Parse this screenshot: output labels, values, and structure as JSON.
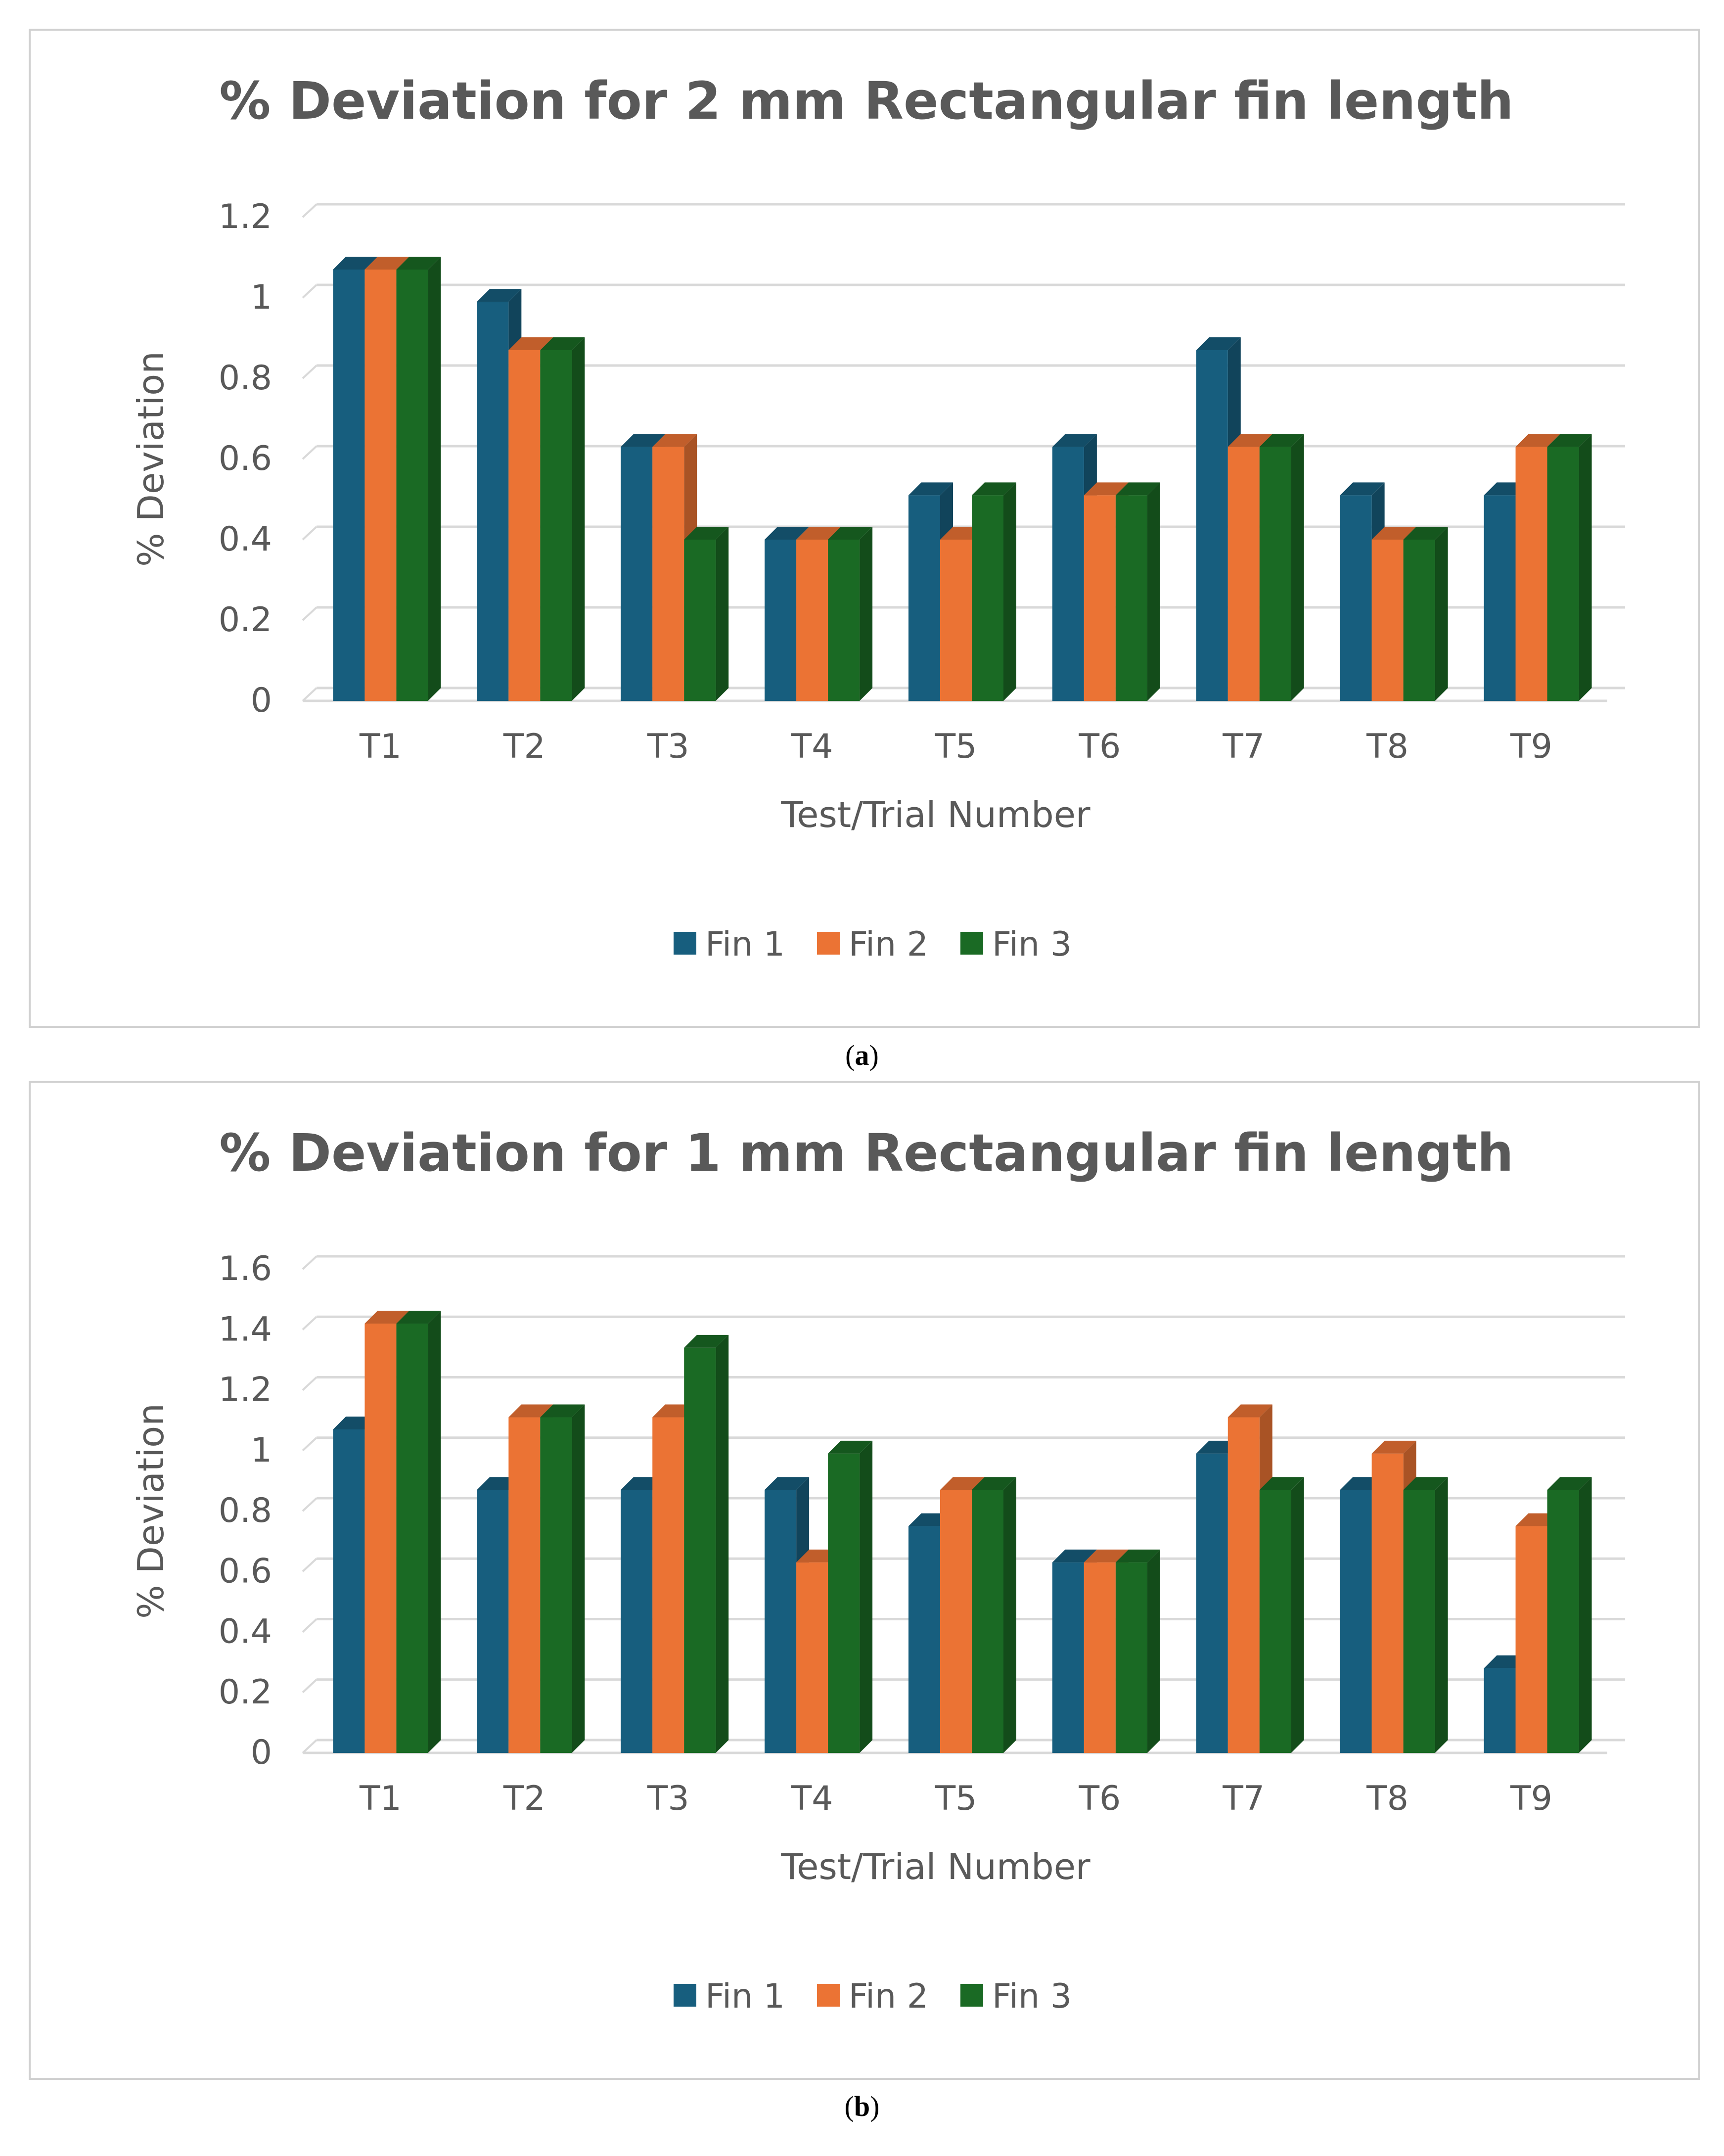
{
  "colors": {
    "fin1": "#175E7E",
    "fin2": "#EB7334",
    "fin3": "#1A6A24",
    "grid": "#d9d9d9",
    "text": "#595959"
  },
  "chart_data": [
    {
      "id": "a",
      "type": "bar",
      "title": "% Deviation for 2 mm Rectangular fin length",
      "xlabel": "Test/Trial Number",
      "ylabel": "% Deviation",
      "ylim": [
        0,
        1.2
      ],
      "yticks": [
        "0",
        "0.2",
        "0.4",
        "0.6",
        "0.8",
        "1",
        "1.2"
      ],
      "grid": true,
      "legend": "bottom",
      "categories": [
        "T1",
        "T2",
        "T3",
        "T4",
        "T5",
        "T6",
        "T7",
        "T8",
        "T9"
      ],
      "series": [
        {
          "name": "Fin 1",
          "values": [
            1.07,
            0.99,
            0.63,
            0.4,
            0.51,
            0.63,
            0.87,
            0.51,
            0.51
          ]
        },
        {
          "name": "Fin 2",
          "values": [
            1.07,
            0.87,
            0.63,
            0.4,
            0.4,
            0.51,
            0.63,
            0.4,
            0.63
          ]
        },
        {
          "name": "Fin 3",
          "values": [
            1.07,
            0.87,
            0.4,
            0.4,
            0.51,
            0.51,
            0.63,
            0.4,
            0.63
          ]
        }
      ],
      "caption": "a"
    },
    {
      "id": "b",
      "type": "bar",
      "title": "% Deviation for 1 mm Rectangular fin length",
      "xlabel": "Test/Trial Number",
      "ylabel": "% Deviation",
      "ylim": [
        0,
        1.6
      ],
      "yticks": [
        "0",
        "0.2",
        "0.4",
        "0.6",
        "0.8",
        "1",
        "1.2",
        "1.4",
        "1.6"
      ],
      "grid": true,
      "legend": "bottom",
      "categories": [
        "T1",
        "T2",
        "T3",
        "T4",
        "T5",
        "T6",
        "T7",
        "T8",
        "T9"
      ],
      "series": [
        {
          "name": "Fin 1",
          "values": [
            1.07,
            0.87,
            0.87,
            0.87,
            0.75,
            0.63,
            0.99,
            0.87,
            0.28
          ]
        },
        {
          "name": "Fin 2",
          "values": [
            1.42,
            1.11,
            1.11,
            0.63,
            0.87,
            0.63,
            1.11,
            0.99,
            0.75
          ]
        },
        {
          "name": "Fin 3",
          "values": [
            1.42,
            1.11,
            1.34,
            0.99,
            0.87,
            0.63,
            0.87,
            0.87,
            0.87
          ]
        }
      ],
      "caption": "b"
    }
  ]
}
